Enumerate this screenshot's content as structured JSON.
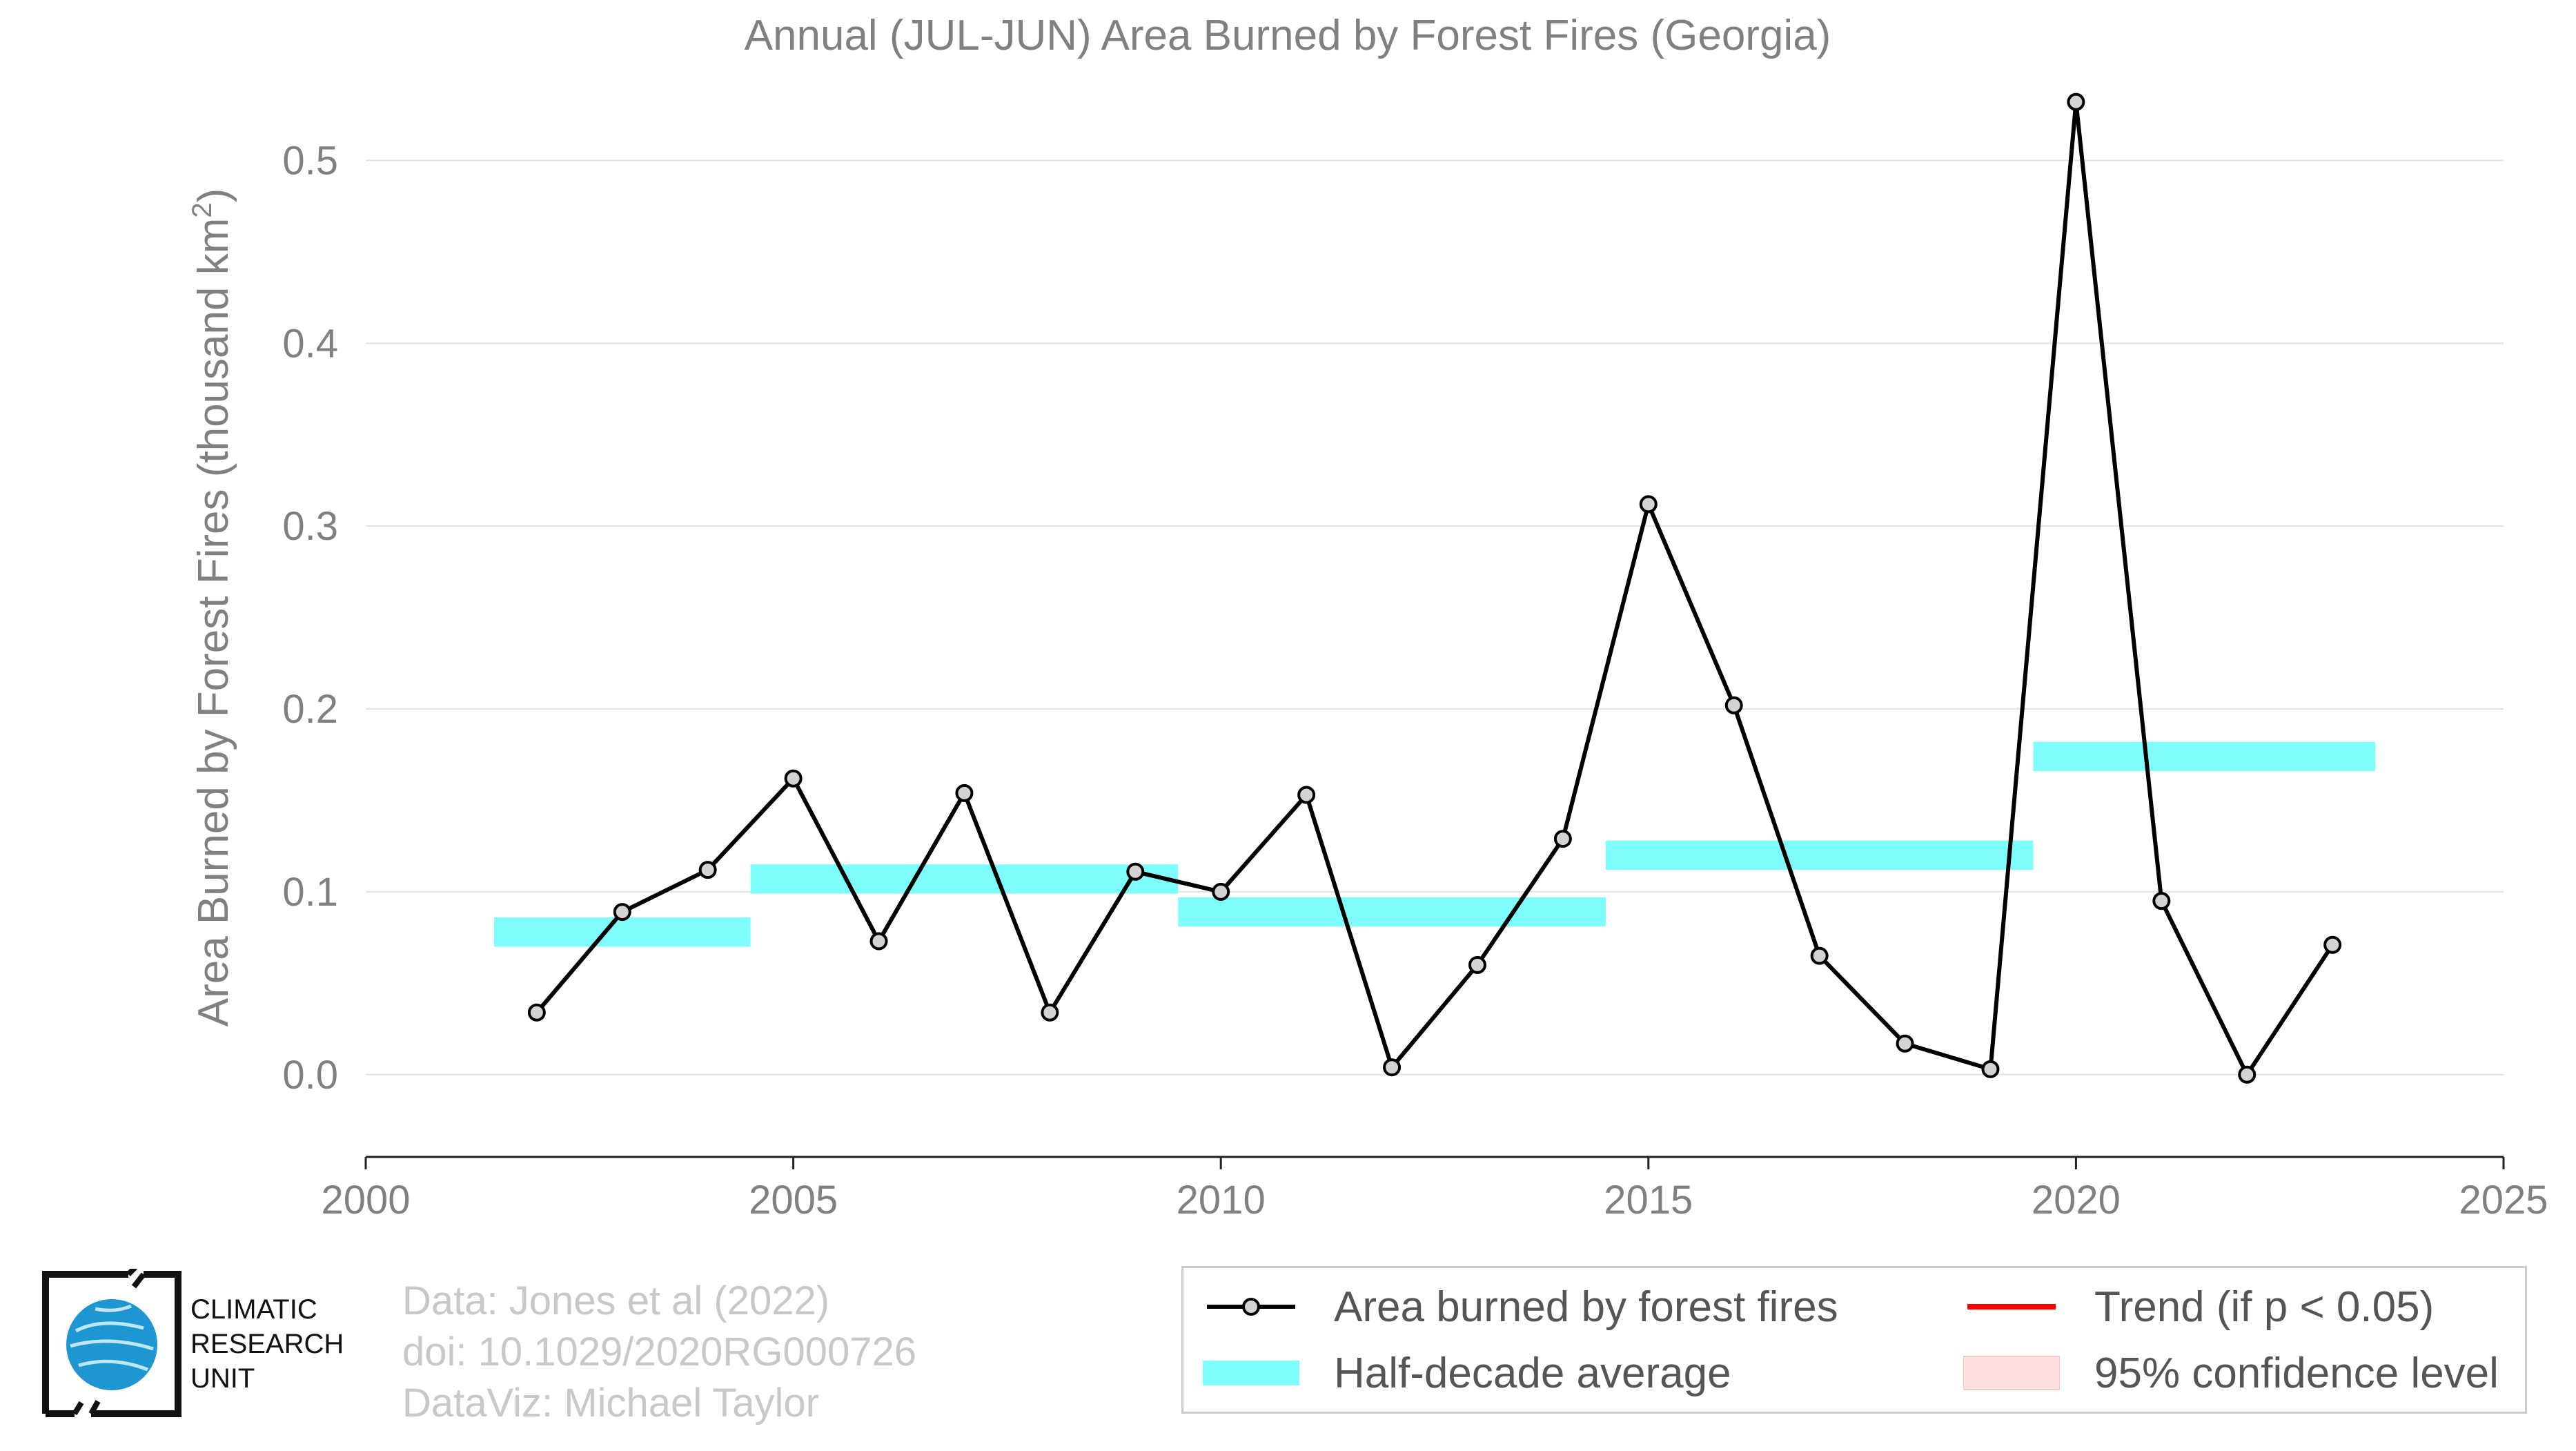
{
  "chart_data": {
    "type": "line",
    "title": "Annual (JUL-JUN) Area Burned by Forest Fires (Georgia)",
    "ylabel": "Area Burned by Forest Fires (thousand km²)",
    "ylabel_main": "Area Burned by Forest Fires (thousand km",
    "ylabel_sup": "2",
    "ylabel_end": ")",
    "xlabel": "",
    "xlim": [
      2000,
      2025
    ],
    "ylim": [
      -0.045,
      0.55
    ],
    "xticks": [
      2000,
      2005,
      2010,
      2015,
      2020,
      2025
    ],
    "yticks": [
      "0.0",
      "0.1",
      "0.2",
      "0.3",
      "0.4",
      "0.5"
    ],
    "grid": true,
    "series": [
      {
        "name": "Area burned by forest fires",
        "color": "#000000",
        "marker": "circle",
        "x": [
          2002,
          2003,
          2004,
          2005,
          2006,
          2007,
          2008,
          2009,
          2010,
          2011,
          2012,
          2013,
          2014,
          2015,
          2016,
          2017,
          2018,
          2019,
          2020,
          2021,
          2022,
          2023
        ],
        "y": [
          0.034,
          0.089,
          0.112,
          0.162,
          0.073,
          0.154,
          0.034,
          0.111,
          0.1,
          0.153,
          0.004,
          0.06,
          0.129,
          0.312,
          0.202,
          0.065,
          0.017,
          0.003,
          0.532,
          0.095,
          0.0,
          0.071
        ]
      },
      {
        "name": "Half-decade average",
        "color": "#7ffdfd",
        "segments": [
          {
            "x0": 2001.5,
            "x1": 2004.5,
            "y": 0.078
          },
          {
            "x0": 2004.5,
            "x1": 2009.5,
            "y": 0.107
          },
          {
            "x0": 2009.5,
            "x1": 2014.5,
            "y": 0.089
          },
          {
            "x0": 2014.5,
            "x1": 2019.5,
            "y": 0.12
          },
          {
            "x0": 2019.5,
            "x1": 2023.5,
            "y": 0.174
          }
        ]
      }
    ],
    "legend": {
      "placement": "bottom",
      "items": [
        {
          "label": "Area burned by forest fires",
          "kind": "line-marker",
          "color": "#000000"
        },
        {
          "label": "Trend (if p < 0.05)",
          "kind": "line",
          "color": "#ff0000"
        },
        {
          "label": "Half-decade average",
          "kind": "band",
          "color": "#7ffdfd"
        },
        {
          "label": "95% confidence level",
          "kind": "patch",
          "color": "#ffe0e0"
        }
      ]
    }
  },
  "credits": {
    "line1": "Data: Jones et al (2022)",
    "line2": "doi: 10.1029/2020RG000726",
    "line3": "DataViz: Michael Taylor"
  },
  "logo": {
    "line1": "CLIMATIC",
    "line2": "RESEARCH",
    "line3": "UNIT",
    "globe_color": "#1e96d2"
  }
}
